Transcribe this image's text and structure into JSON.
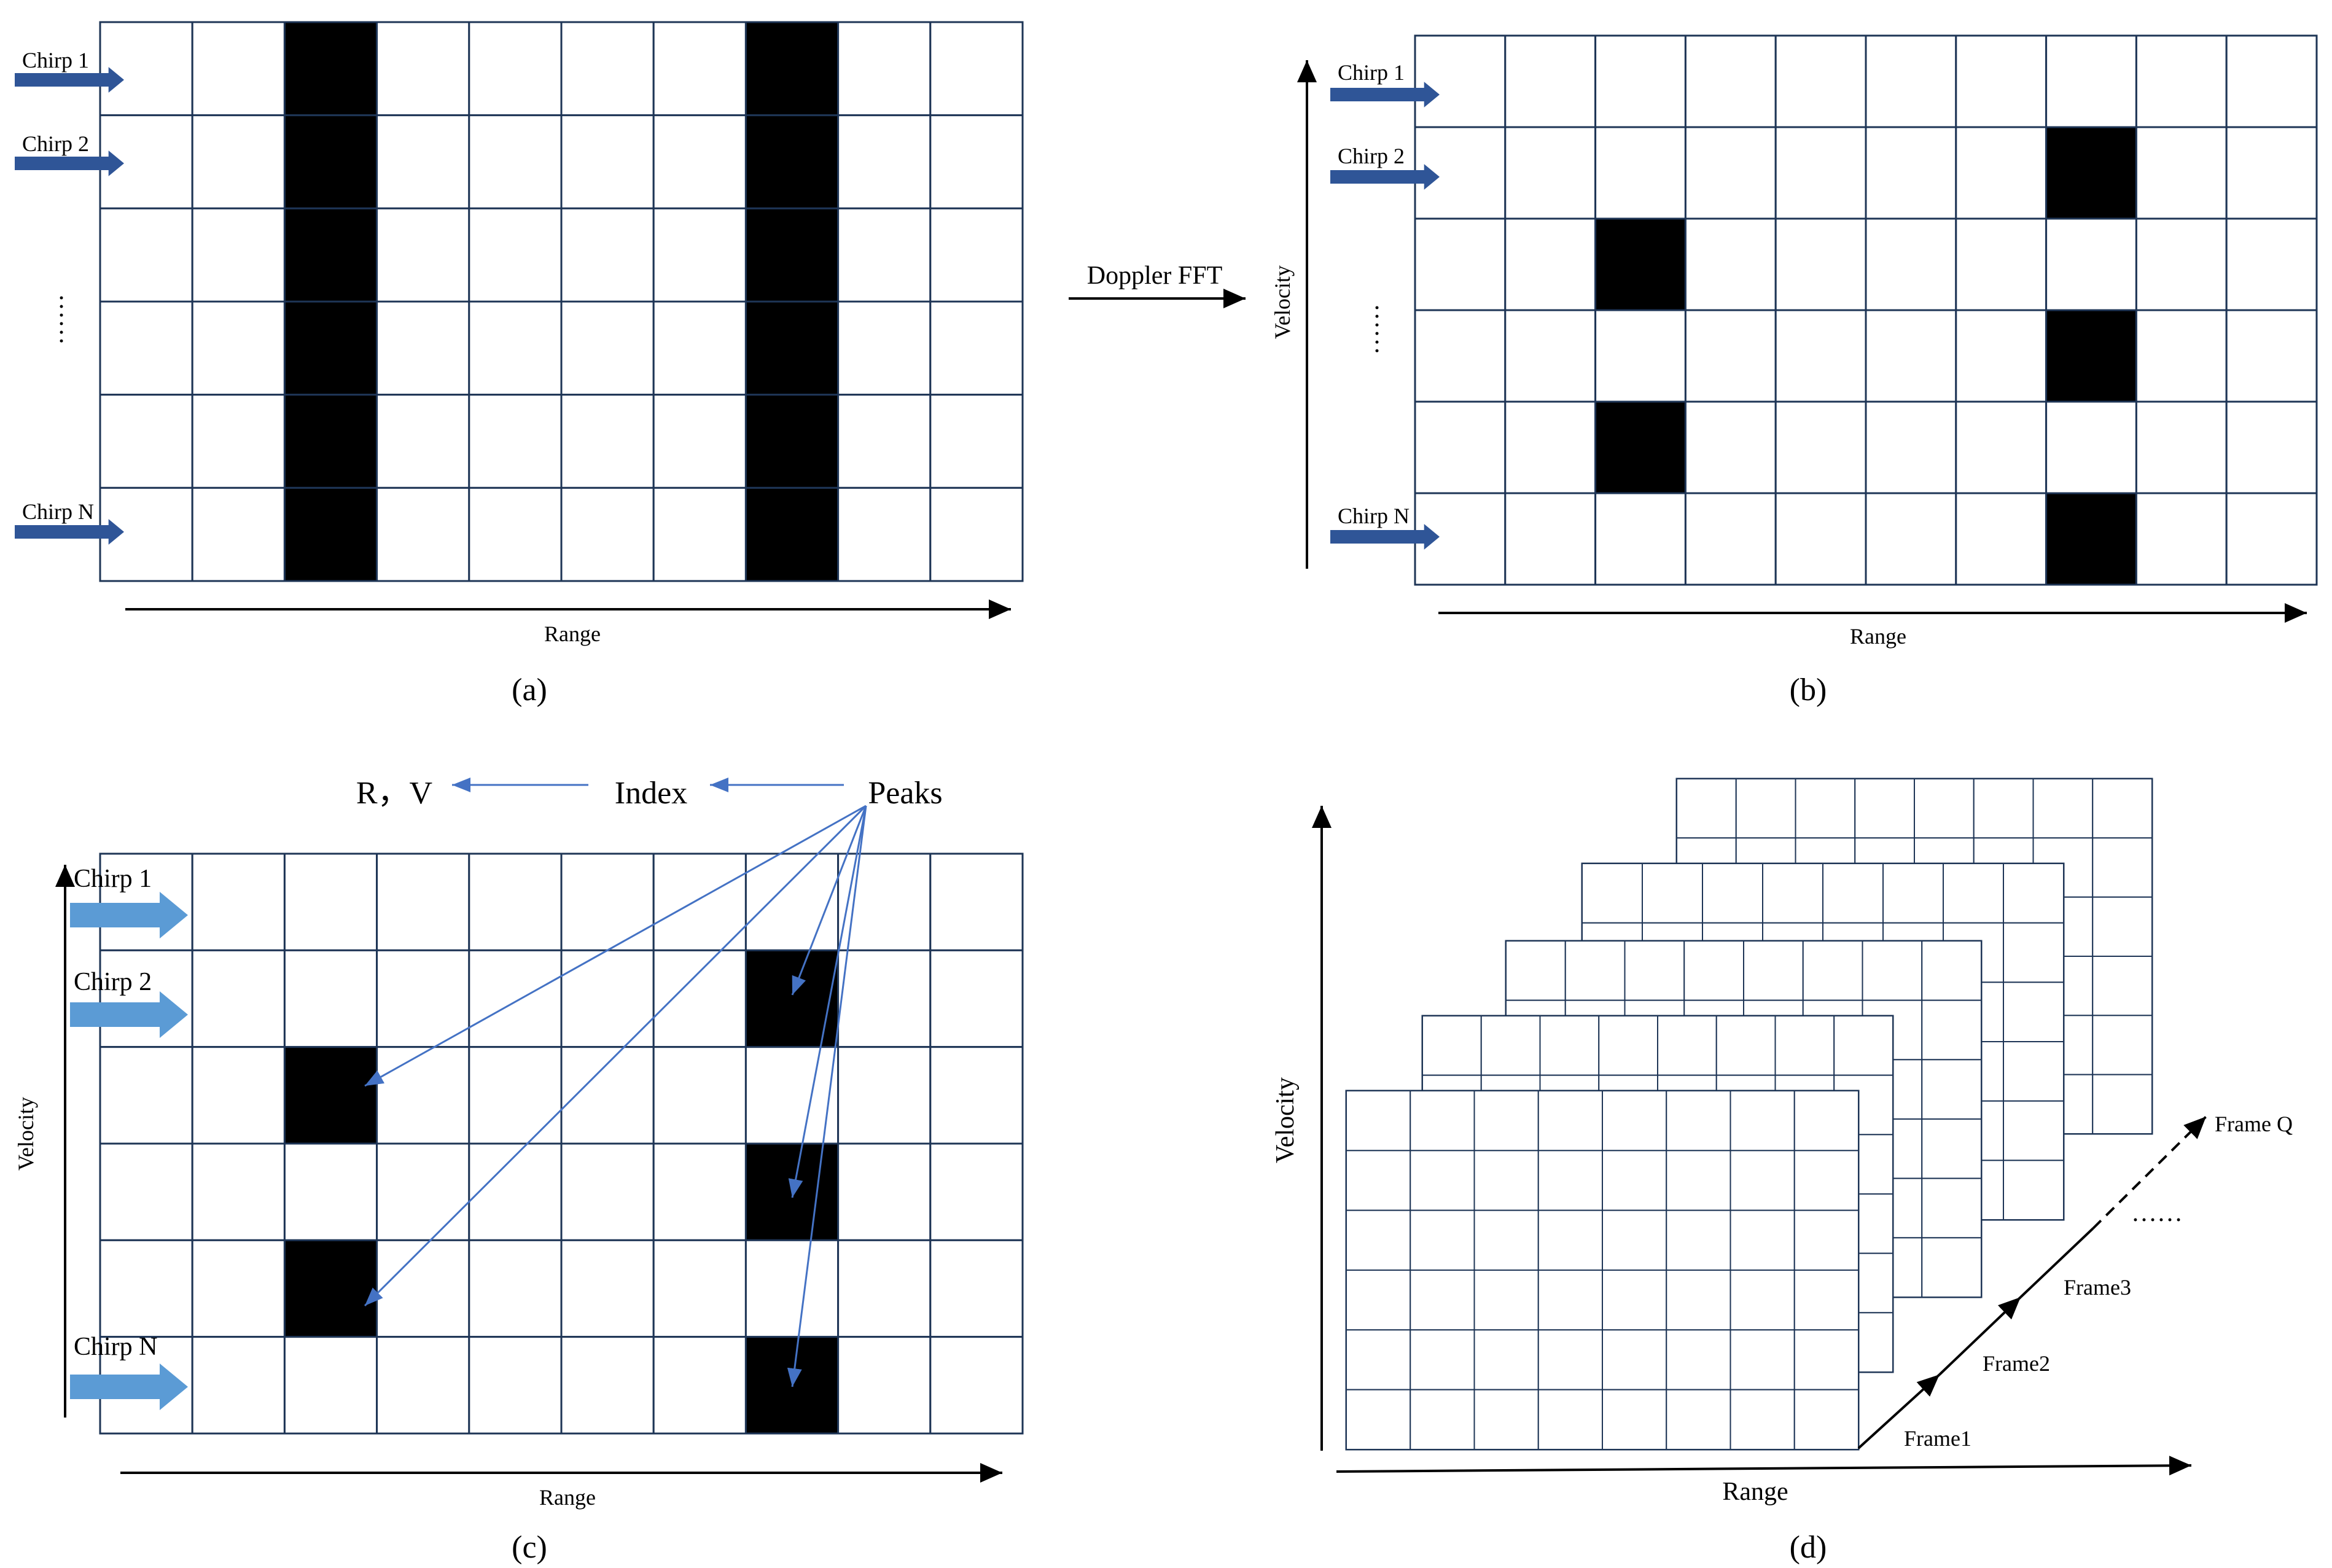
{
  "panels": {
    "a": {
      "caption": "(a)",
      "chirp_labels": [
        "Chirp 1",
        "Chirp 2",
        "Chirp N"
      ],
      "ellipsis": "……",
      "x_axis_label": "Range",
      "grid": {
        "rows": 6,
        "cols": 10,
        "filled_columns": [
          2,
          7
        ]
      }
    },
    "b": {
      "caption": "(b)",
      "chirp_labels": [
        "Chirp 1",
        "Chirp 2",
        "Chirp N"
      ],
      "ellipsis": "……",
      "x_axis_label": "Range",
      "y_axis_label": "Velocity",
      "grid": {
        "rows": 6,
        "cols": 10,
        "filled_cells": [
          [
            1,
            7
          ],
          [
            2,
            2
          ],
          [
            3,
            7
          ],
          [
            4,
            2
          ],
          [
            5,
            7
          ]
        ]
      }
    },
    "c": {
      "caption": "(c)",
      "chirp_labels": [
        "Chirp 1",
        "Chirp 2",
        "Chirp N"
      ],
      "x_axis_label": "Range",
      "y_axis_label": "Velocity",
      "flow": {
        "rv": "R，V",
        "index": "Index",
        "peaks": "Peaks"
      },
      "grid": {
        "rows": 6,
        "cols": 10,
        "filled_cells": [
          [
            1,
            7
          ],
          [
            2,
            2
          ],
          [
            3,
            7
          ],
          [
            4,
            2
          ],
          [
            5,
            7
          ]
        ]
      }
    },
    "d": {
      "caption": "(d)",
      "x_axis_label": "Range",
      "y_axis_label": "Velocity",
      "frames": [
        "Frame1",
        "Frame2",
        "Frame3",
        "Frame Q"
      ],
      "ellipsis": "……",
      "grid": {
        "rows": 6,
        "cols": 8
      }
    }
  },
  "transform_label": "Doppler FFT",
  "colors": {
    "grid_line": "#1e3556",
    "cell_fill_dark": "#000000",
    "chirp_arrow_dark": "#2f5597",
    "chirp_arrow_light": "#5b9bd5",
    "peak_arrow": "#4472c4",
    "axis": "#000000"
  }
}
